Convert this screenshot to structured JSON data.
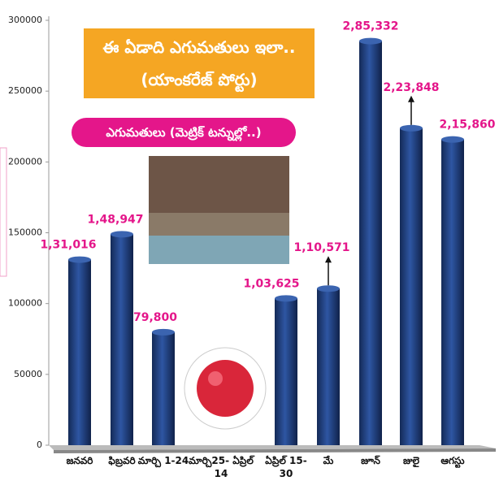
{
  "chart_data": {
    "type": "bar",
    "title": "ఈ ఏడాది ఎగుమతులు ఇలా..",
    "subtitle": "(యాంకరేజ్ పోర్టు)",
    "annotation": "ఎగుమతులు (మెట్రిక్ టన్నుల్లో..)",
    "categories": [
      "జనవరి",
      "ఫిబ్రవరి",
      "మార్చి 1-24",
      "మార్చి25- ఏప్రిల్ 14",
      "ఏప్రిల్ 15- 30",
      "మే",
      "జూన్",
      "జులై",
      "ఆగస్టు"
    ],
    "values": [
      131016,
      148947,
      79800,
      null,
      103625,
      110571,
      285332,
      223848,
      215860
    ],
    "value_labels": [
      "1,31,016",
      "1,48,947",
      "79,800",
      null,
      "1,03,625",
      "1,10,571",
      "2,85,332",
      "2,23,848",
      "2,15,860"
    ],
    "color": "#1f3d7a",
    "ylim": [
      0,
      300000
    ],
    "yticks": [
      0,
      50000,
      100000,
      150000,
      200000,
      250000,
      300000
    ],
    "grid": false
  }
}
